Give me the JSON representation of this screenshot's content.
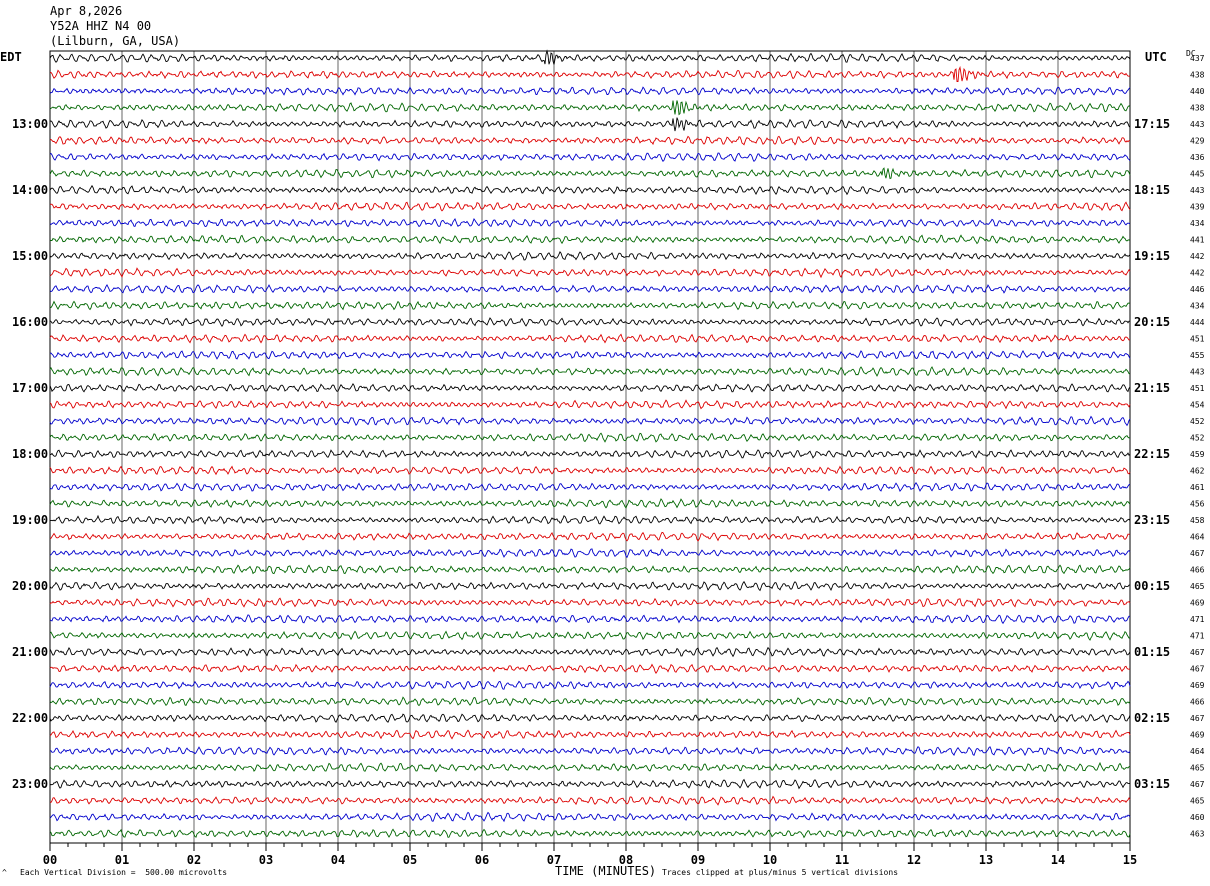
{
  "header": {
    "date": "Apr 8,2026",
    "station": "Y52A HHZ N4 00",
    "location": "(Lilburn, GA, USA)"
  },
  "left_tz": "EDT",
  "right_tz": "UTC",
  "dc_label": "DC",
  "footer": {
    "division_note": "Each Vertical Division =  500.00 microvolts",
    "clip_note": "Traces clipped at plus/minus 5 vertical divisions"
  },
  "colors": {
    "trace_cycle": [
      "#000000",
      "#dd0000",
      "#0000cc",
      "#006600"
    ],
    "grid": "#000000",
    "background": "#ffffff"
  },
  "chart_data": {
    "type": "line",
    "subtype": "helicorder",
    "xlabel": "TIME (MINUTES)",
    "x_ticks": [
      "00",
      "01",
      "02",
      "03",
      "04",
      "05",
      "06",
      "07",
      "08",
      "09",
      "10",
      "11",
      "12",
      "13",
      "14",
      "15"
    ],
    "xlim": [
      0,
      15
    ],
    "traces_per_hour": 4,
    "minutes_per_trace": 15,
    "left_hour_labels": [
      "13:00",
      "14:00",
      "15:00",
      "16:00",
      "17:00",
      "18:00",
      "19:00",
      "20:00",
      "21:00",
      "22:00",
      "23:00"
    ],
    "right_hour_labels": [
      "17:15",
      "18:15",
      "19:15",
      "20:15",
      "21:15",
      "22:15",
      "23:15",
      "00:15",
      "01:15",
      "02:15",
      "03:15"
    ],
    "dc_offsets": [
      437,
      438,
      440,
      438,
      443,
      429,
      436,
      445,
      443,
      439,
      434,
      441,
      442,
      442,
      446,
      434,
      444,
      451,
      455,
      443,
      451,
      454,
      452,
      452,
      459,
      462,
      461,
      456,
      458,
      464,
      467,
      466,
      465,
      469,
      471,
      471,
      467,
      467,
      469,
      466,
      467,
      469,
      464,
      465,
      467,
      465,
      460,
      463
    ],
    "events": [
      {
        "trace": 0,
        "minute": 6.9,
        "amp": 2.2
      },
      {
        "trace": 1,
        "minute": 12.6,
        "amp": 3.0
      },
      {
        "trace": 3,
        "minute": 8.7,
        "amp": 3.0
      },
      {
        "trace": 4,
        "minute": 8.7,
        "amp": 2.0
      },
      {
        "trace": 7,
        "minute": 11.6,
        "amp": 1.6
      }
    ]
  }
}
